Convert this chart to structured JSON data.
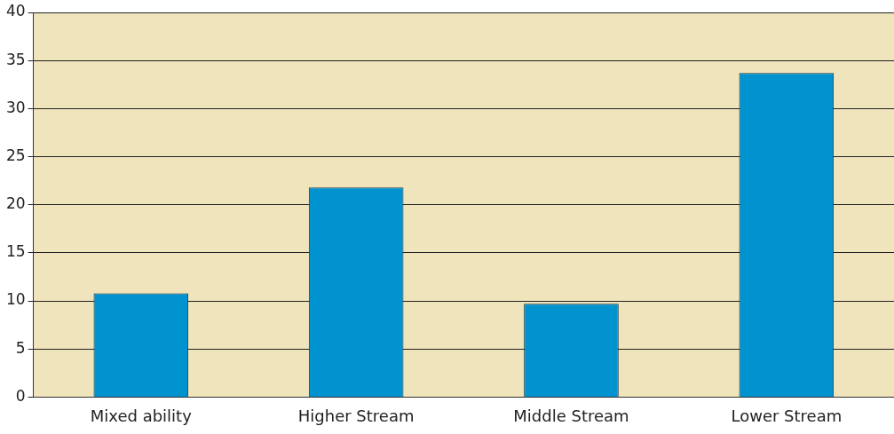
{
  "chart_data": {
    "type": "bar",
    "categories": [
      "Mixed ability",
      "Higher Stream",
      "Middle Stream",
      "Lower Stream"
    ],
    "values": [
      10.8,
      21.8,
      9.7,
      33.7
    ],
    "color": "#0192d0",
    "ylim": [
      0,
      40
    ],
    "yticks": [
      0,
      5,
      10,
      15,
      20,
      25,
      30,
      35,
      40
    ],
    "grid": "y",
    "legend": false
  }
}
